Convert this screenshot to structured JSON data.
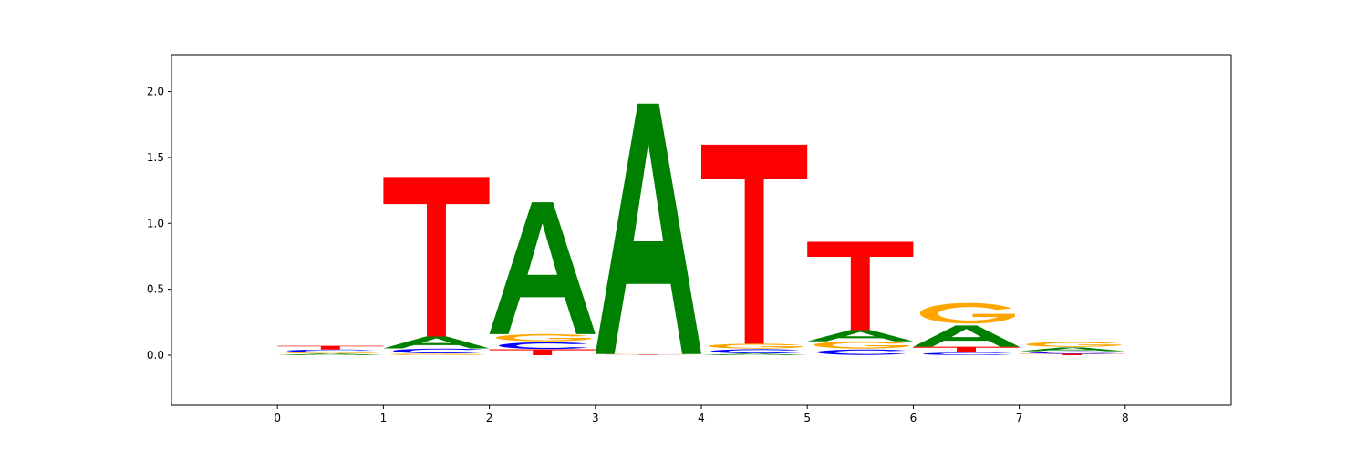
{
  "chart_data": {
    "type": "sequence-logo",
    "title": "",
    "xlabel": "",
    "ylabel": "",
    "xlim": [
      -1,
      9
    ],
    "ylim": [
      -0.38,
      2.28
    ],
    "xticks": [
      0,
      1,
      2,
      3,
      4,
      5,
      6,
      7,
      8
    ],
    "xtick_labels": [
      "0",
      "1",
      "2",
      "3",
      "4",
      "5",
      "6",
      "7",
      "8"
    ],
    "yticks": [
      0.0,
      0.5,
      1.0,
      1.5,
      2.0
    ],
    "ytick_labels": [
      "0.0",
      "0.5",
      "1.0",
      "1.5",
      "2.0"
    ],
    "grid": false,
    "colors": {
      "A": "#008000",
      "C": "#0000ff",
      "G": "#ffa500",
      "T": "#ff0000"
    },
    "positions": [
      {
        "x_start": 0,
        "x_end": 1,
        "stack": [
          {
            "letter": "A",
            "height": 0.012
          },
          {
            "letter": "G",
            "height": 0.01
          },
          {
            "letter": "C",
            "height": 0.022
          },
          {
            "letter": "T",
            "height": 0.028
          }
        ]
      },
      {
        "x_start": 1,
        "x_end": 2,
        "stack": [
          {
            "letter": "G",
            "height": 0.012
          },
          {
            "letter": "C",
            "height": 0.04
          },
          {
            "letter": "A",
            "height": 0.09
          },
          {
            "letter": "T",
            "height": 1.21
          }
        ]
      },
      {
        "x_start": 2,
        "x_end": 3,
        "stack": [
          {
            "letter": "T",
            "height": 0.045
          },
          {
            "letter": "C",
            "height": 0.055
          },
          {
            "letter": "G",
            "height": 0.06
          },
          {
            "letter": "A",
            "height": 1.0
          }
        ]
      },
      {
        "x_start": 3,
        "x_end": 4,
        "stack": [
          {
            "letter": "T",
            "height": 0.003
          },
          {
            "letter": "C",
            "height": 0.002
          },
          {
            "letter": "G",
            "height": 0.004
          },
          {
            "letter": "A",
            "height": 1.9
          }
        ]
      },
      {
        "x_start": 4,
        "x_end": 5,
        "stack": [
          {
            "letter": "A",
            "height": 0.012
          },
          {
            "letter": "C",
            "height": 0.035
          },
          {
            "letter": "G",
            "height": 0.04
          },
          {
            "letter": "T",
            "height": 1.51
          }
        ]
      },
      {
        "x_start": 5,
        "x_end": 6,
        "stack": [
          {
            "letter": "C",
            "height": 0.045
          },
          {
            "letter": "G",
            "height": 0.06
          },
          {
            "letter": "A",
            "height": 0.085
          },
          {
            "letter": "T",
            "height": 0.67
          }
        ]
      },
      {
        "x_start": 6,
        "x_end": 7,
        "stack": [
          {
            "letter": "C",
            "height": 0.02
          },
          {
            "letter": "T",
            "height": 0.045
          },
          {
            "letter": "A",
            "height": 0.16
          },
          {
            "letter": "G",
            "height": 0.17
          }
        ]
      },
      {
        "x_start": 7,
        "x_end": 8,
        "stack": [
          {
            "letter": "T",
            "height": 0.01
          },
          {
            "letter": "C",
            "height": 0.02
          },
          {
            "letter": "A",
            "height": 0.03
          },
          {
            "letter": "G",
            "height": 0.04
          }
        ]
      }
    ]
  }
}
